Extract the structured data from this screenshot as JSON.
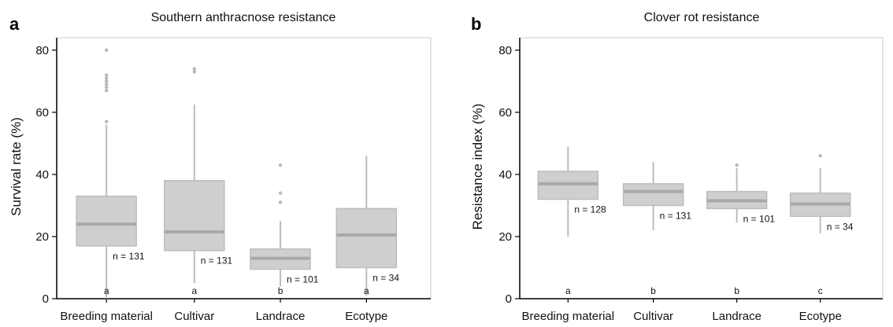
{
  "chart_data": [
    {
      "type": "box",
      "panel_label": "a",
      "title": "Southern anthracnose resistance",
      "ylabel": "Survival rate (%)",
      "xlabel": "",
      "ylim": [
        0,
        84
      ],
      "yticks": [
        "0",
        "20",
        "40",
        "60",
        "80"
      ],
      "grid": false,
      "categories": [
        "Breeding material",
        "Cultivar",
        "Landrace",
        "Ecotype"
      ],
      "boxes": [
        {
          "category": "Breeding material",
          "whisker_low": 0,
          "q1": 17,
          "median": 24,
          "q3": 33,
          "whisker_high": 56,
          "outliers": [
            57,
            67,
            68,
            69,
            70,
            71,
            72,
            80
          ],
          "n_label": "n = 131",
          "group": "a"
        },
        {
          "category": "Cultivar",
          "whisker_low": 5,
          "q1": 15.5,
          "median": 21.5,
          "q3": 38,
          "whisker_high": 62.5,
          "outliers": [
            73,
            74
          ],
          "n_label": "n = 131",
          "group": "a"
        },
        {
          "category": "Landrace",
          "whisker_low": 4,
          "q1": 9.5,
          "median": 13,
          "q3": 16,
          "whisker_high": 25,
          "outliers": [
            31,
            34,
            43
          ],
          "n_label": "n = 101",
          "group": "b"
        },
        {
          "category": "Ecotype",
          "whisker_low": 1,
          "q1": 10,
          "median": 20.5,
          "q3": 29,
          "whisker_high": 46,
          "outliers": [],
          "n_label": "n = 34",
          "group": "a"
        }
      ]
    },
    {
      "type": "box",
      "panel_label": "b",
      "title": "Clover rot resistance",
      "ylabel": "Resistance index (%)",
      "xlabel": "",
      "ylim": [
        0,
        84
      ],
      "yticks": [
        "0",
        "20",
        "40",
        "60",
        "80"
      ],
      "grid": false,
      "categories": [
        "Breeding material",
        "Cultivar",
        "Landrace",
        "Ecotype"
      ],
      "boxes": [
        {
          "category": "Breeding material",
          "whisker_low": 20,
          "q1": 32,
          "median": 37,
          "q3": 41,
          "whisker_high": 49,
          "outliers": [],
          "n_label": "n = 128",
          "group": "a"
        },
        {
          "category": "Cultivar",
          "whisker_low": 22,
          "q1": 30,
          "median": 34.5,
          "q3": 37,
          "whisker_high": 44,
          "outliers": [],
          "n_label": "n = 131",
          "group": "b"
        },
        {
          "category": "Landrace",
          "whisker_low": 24.5,
          "q1": 29,
          "median": 31.5,
          "q3": 34.5,
          "whisker_high": 42,
          "outliers": [
            43
          ],
          "n_label": "n = 101",
          "group": "b"
        },
        {
          "category": "Ecotype",
          "whisker_low": 21,
          "q1": 26.5,
          "median": 30.5,
          "q3": 34,
          "whisker_high": 42,
          "outliers": [
            46
          ],
          "n_label": "n = 34",
          "group": "c"
        }
      ]
    }
  ],
  "colors": {
    "box_fill": "#cfcfcf",
    "box_stroke": "#bdbdbd",
    "median": "#a9a9a9",
    "whisker": "#bdbdbd",
    "outlier": "#b8b8b8",
    "axis": "#000000",
    "frame": "#c8c8c8"
  }
}
